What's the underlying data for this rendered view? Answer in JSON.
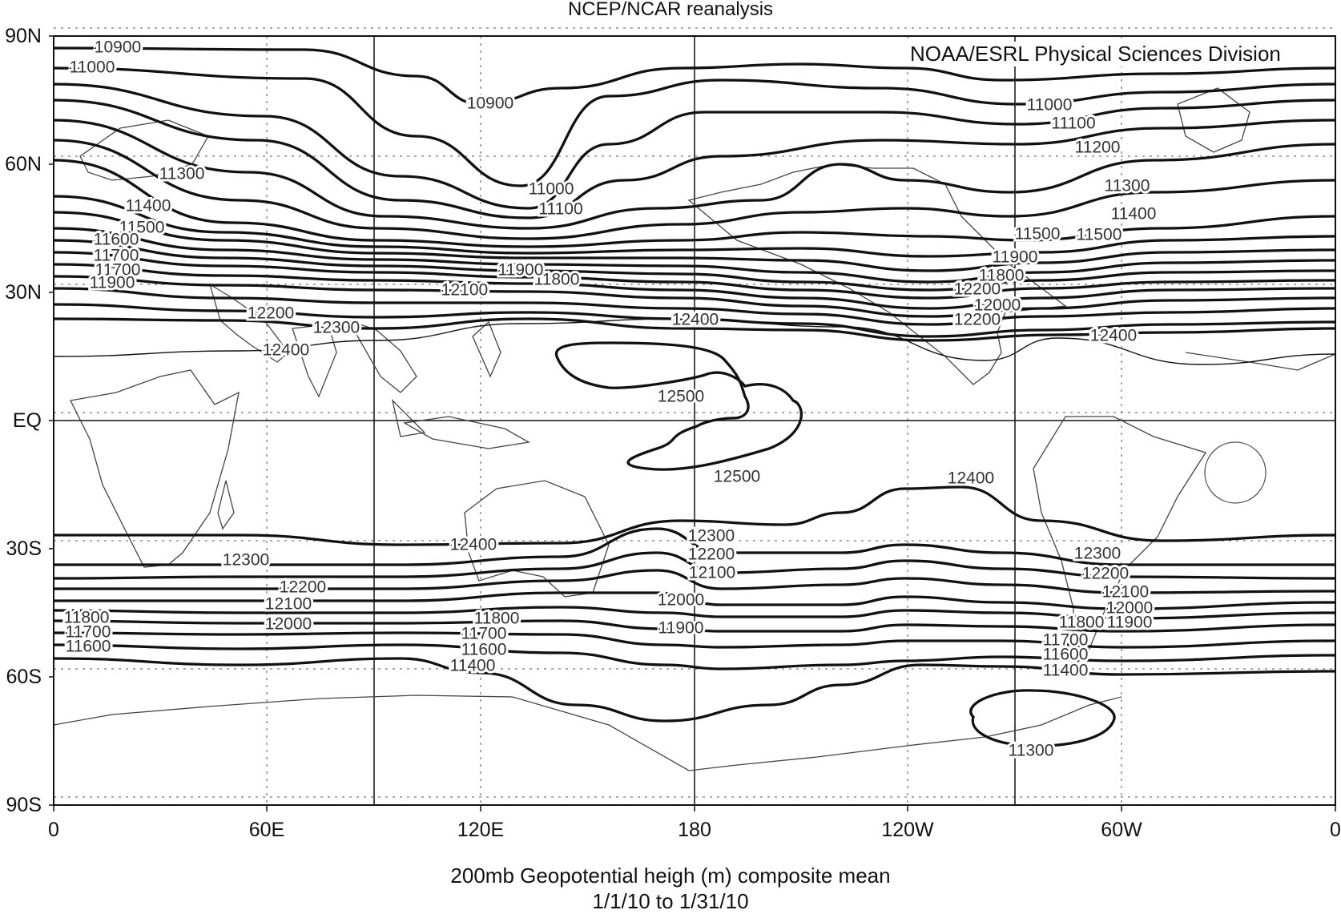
{
  "title": "NCEP/NCAR reanalysis",
  "attribution": "NOAA/ESRL Physical Sciences Division",
  "caption": "200mb Geopotential heigh (m) composite mean",
  "dates": "1/1/10  to  1/31/10",
  "map": {
    "projection": "cylindrical equidistant",
    "lon_range": [
      0,
      360
    ],
    "lat_range": [
      -90,
      90
    ],
    "x_ticks": [
      "0",
      "60E",
      "120E",
      "180",
      "120W",
      "60W",
      "0"
    ],
    "y_ticks": [
      "90N",
      "60N",
      "30N",
      "EQ",
      "30S",
      "60S",
      "90S"
    ],
    "grid": "solid every 90 deg longitude and at the equator; dotted every 30 deg",
    "contour_labels": [
      "10900",
      "11000",
      "11100",
      "11200",
      "11300",
      "11400",
      "11500",
      "11600",
      "11700",
      "11800",
      "11900",
      "12000",
      "12100",
      "12200",
      "12300",
      "12400",
      "12500"
    ],
    "colors": {
      "contour": "#111111",
      "coast": "#444444",
      "grid": "#111111",
      "background": "#ffffff"
    }
  }
}
